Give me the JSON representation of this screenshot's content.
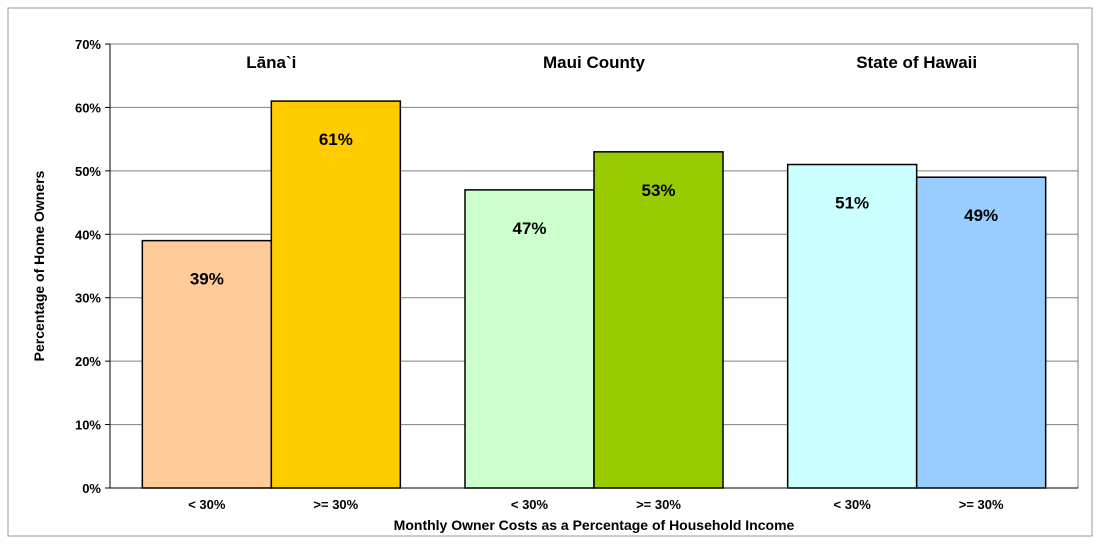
{
  "chart_data": {
    "type": "bar",
    "title": "",
    "xlabel": "Monthly Owner Costs as a Percentage of Household Income",
    "ylabel": "Percentage of Home Owners",
    "ylim": [
      0,
      70
    ],
    "yticks": [
      0,
      10,
      20,
      30,
      40,
      50,
      60,
      70
    ],
    "ytick_labels": [
      "0%",
      "10%",
      "20%",
      "30%",
      "40%",
      "50%",
      "60%",
      "70%"
    ],
    "grid": true,
    "legend": "none",
    "groups": [
      {
        "name": "Lāna`i",
        "bars": [
          {
            "category": "< 30%",
            "value": 39,
            "label": "39%",
            "color": "#FFCC99"
          },
          {
            "category": ">= 30%",
            "value": 61,
            "label": "61%",
            "color": "#FFCC00"
          }
        ]
      },
      {
        "name": "Maui County",
        "bars": [
          {
            "category": "< 30%",
            "value": 47,
            "label": "47%",
            "color": "#CCFFCC"
          },
          {
            "category": ">= 30%",
            "value": 53,
            "label": "53%",
            "color": "#99CC00"
          }
        ]
      },
      {
        "name": "State of Hawaii",
        "bars": [
          {
            "category": "< 30%",
            "value": 51,
            "label": "51%",
            "color": "#CCFFFF"
          },
          {
            "category": ">= 30%",
            "value": 49,
            "label": "49%",
            "color": "#99CCFF"
          }
        ]
      }
    ]
  }
}
